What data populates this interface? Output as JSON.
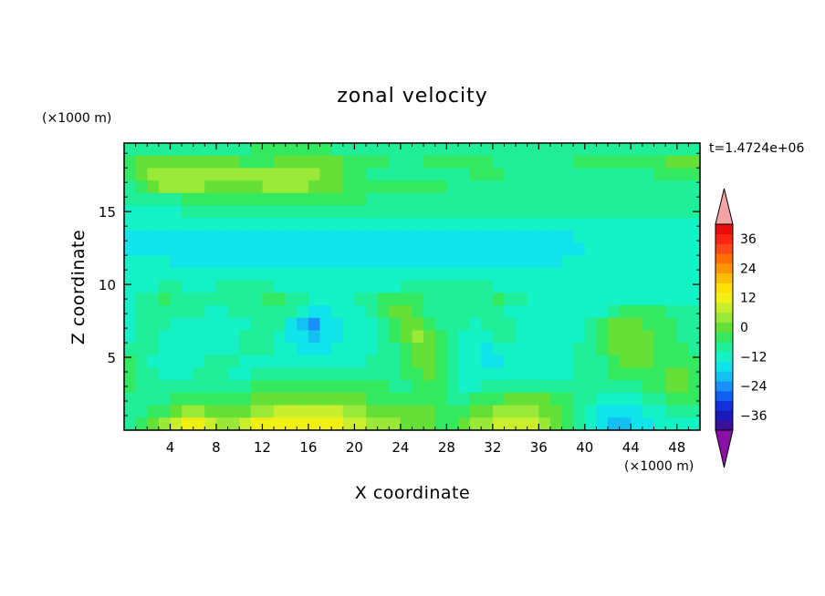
{
  "chart_data": {
    "type": "heatmap",
    "title": "zonal velocity",
    "xlabel": "X coordinate",
    "ylabel": "Z coordinate",
    "x_unit": "(×1000 m)",
    "y_unit": "(×1000 m)",
    "time_label": "t=1.4724e+06",
    "xlim": [
      0,
      50
    ],
    "ylim": [
      0,
      19.7
    ],
    "xticks": [
      "4",
      "8",
      "12",
      "16",
      "20",
      "24",
      "28",
      "32",
      "36",
      "40",
      "44",
      "48"
    ],
    "yticks": [
      "5",
      "10",
      "15"
    ],
    "colorbar": {
      "tick_labels": [
        "36",
        "24",
        "12",
        "0",
        "−12",
        "−24",
        "−36"
      ],
      "tick_values": [
        36,
        24,
        12,
        0,
        -12,
        -24,
        -36
      ],
      "range": [
        -42,
        42
      ],
      "step": 4,
      "colors": [
        "#3a0f9a",
        "#1a1ab8",
        "#1530d8",
        "#1060f0",
        "#1890f8",
        "#14bff2",
        "#10e4ea",
        "#14f2c6",
        "#20ee98",
        "#34e860",
        "#64e036",
        "#9ae838",
        "#c8ee2e",
        "#f0f016",
        "#ffe000",
        "#ffbc00",
        "#ff9600",
        "#ff7000",
        "#ff4818",
        "#ff2414",
        "#e80c0c"
      ],
      "over_color": "#f4a4a4",
      "under_color": "#8a10a8"
    },
    "grid": false,
    "field_rows_note": "",
    "field": [
      [
        8,
        8,
        8,
        8,
        8,
        8,
        8,
        8,
        8,
        8,
        8,
        9,
        9,
        9,
        9,
        9,
        9,
        9,
        8,
        8,
        8,
        8,
        8,
        8,
        8,
        8,
        8,
        8,
        8,
        8,
        8,
        8,
        8,
        8,
        8,
        8,
        8,
        8,
        8,
        8,
        8,
        8,
        8,
        8,
        8,
        8,
        8,
        8,
        8,
        8
      ],
      [
        9,
        10,
        10,
        10,
        10,
        10,
        10,
        10,
        10,
        10,
        9,
        9,
        9,
        10,
        10,
        10,
        10,
        10,
        10,
        9,
        9,
        9,
        9,
        8,
        8,
        8,
        9,
        9,
        9,
        9,
        9,
        9,
        8,
        8,
        8,
        8,
        8,
        8,
        8,
        9,
        9,
        9,
        9,
        9,
        9,
        9,
        9,
        10,
        10,
        10
      ],
      [
        9,
        10,
        11,
        11,
        11,
        11,
        11,
        11,
        11,
        11,
        11,
        11,
        11,
        11,
        11,
        11,
        11,
        10,
        10,
        9,
        9,
        8,
        8,
        8,
        8,
        8,
        8,
        8,
        8,
        8,
        9,
        9,
        9,
        8,
        8,
        8,
        8,
        8,
        8,
        8,
        8,
        8,
        8,
        8,
        8,
        8,
        9,
        9,
        9,
        9
      ],
      [
        8,
        9,
        10,
        11,
        11,
        11,
        11,
        10,
        10,
        10,
        10,
        10,
        11,
        11,
        11,
        11,
        10,
        10,
        10,
        9,
        9,
        9,
        9,
        9,
        9,
        9,
        9,
        9,
        8,
        8,
        8,
        8,
        8,
        8,
        8,
        8,
        8,
        8,
        8,
        8,
        8,
        8,
        8,
        8,
        8,
        8,
        8,
        8,
        8,
        8
      ],
      [
        8,
        8,
        8,
        8,
        8,
        9,
        9,
        9,
        9,
        9,
        9,
        9,
        9,
        9,
        9,
        9,
        9,
        9,
        9,
        9,
        9,
        8,
        8,
        8,
        8,
        8,
        8,
        8,
        8,
        8,
        8,
        8,
        8,
        8,
        8,
        8,
        8,
        8,
        8,
        8,
        8,
        8,
        8,
        8,
        8,
        8,
        8,
        8,
        8,
        8
      ],
      [
        7,
        7,
        7,
        7,
        7,
        8,
        8,
        8,
        8,
        8,
        8,
        8,
        8,
        8,
        8,
        8,
        8,
        8,
        8,
        8,
        8,
        8,
        8,
        8,
        8,
        8,
        8,
        8,
        8,
        8,
        8,
        8,
        8,
        8,
        8,
        8,
        8,
        8,
        8,
        8,
        8,
        8,
        8,
        8,
        8,
        8,
        8,
        8,
        8,
        8
      ],
      [
        7,
        7,
        7,
        7,
        7,
        7,
        7,
        7,
        7,
        7,
        7,
        7,
        7,
        7,
        7,
        7,
        7,
        7,
        7,
        7,
        7,
        7,
        7,
        7,
        7,
        7,
        7,
        7,
        7,
        7,
        7,
        7,
        7,
        7,
        7,
        7,
        7,
        7,
        7,
        7,
        7,
        7,
        7,
        7,
        7,
        7,
        7,
        7,
        7,
        7
      ],
      [
        6,
        6,
        6,
        6,
        6,
        6,
        6,
        6,
        6,
        6,
        6,
        6,
        6,
        6,
        6,
        6,
        6,
        6,
        6,
        6,
        6,
        6,
        6,
        6,
        6,
        6,
        6,
        6,
        6,
        6,
        6,
        6,
        6,
        6,
        6,
        6,
        6,
        6,
        6,
        7,
        7,
        7,
        7,
        7,
        7,
        7,
        7,
        7,
        7,
        7
      ],
      [
        6,
        6,
        6,
        6,
        6,
        6,
        6,
        6,
        6,
        6,
        6,
        6,
        6,
        6,
        6,
        6,
        6,
        6,
        6,
        6,
        6,
        6,
        6,
        6,
        6,
        6,
        6,
        6,
        6,
        6,
        6,
        6,
        6,
        6,
        6,
        6,
        6,
        6,
        6,
        6,
        7,
        7,
        7,
        7,
        7,
        7,
        7,
        7,
        7,
        7
      ],
      [
        7,
        7,
        7,
        7,
        6,
        6,
        6,
        6,
        6,
        6,
        6,
        6,
        6,
        6,
        6,
        6,
        6,
        6,
        6,
        6,
        6,
        6,
        6,
        6,
        6,
        6,
        6,
        6,
        6,
        6,
        6,
        6,
        6,
        6,
        6,
        6,
        6,
        6,
        7,
        7,
        7,
        7,
        7,
        7,
        7,
        7,
        7,
        7,
        7,
        7
      ],
      [
        7,
        7,
        7,
        7,
        7,
        7,
        7,
        7,
        7,
        7,
        7,
        7,
        7,
        7,
        7,
        7,
        7,
        7,
        7,
        7,
        7,
        7,
        7,
        7,
        7,
        7,
        7,
        7,
        7,
        7,
        7,
        7,
        7,
        7,
        7,
        7,
        7,
        7,
        7,
        7,
        7,
        7,
        7,
        7,
        7,
        7,
        7,
        7,
        7,
        7
      ],
      [
        7,
        7,
        7,
        8,
        8,
        7,
        7,
        7,
        8,
        8,
        8,
        8,
        8,
        7,
        7,
        7,
        7,
        7,
        7,
        7,
        7,
        7,
        7,
        7,
        8,
        8,
        8,
        8,
        8,
        8,
        8,
        8,
        7,
        7,
        7,
        7,
        7,
        7,
        7,
        7,
        7,
        7,
        7,
        7,
        7,
        7,
        7,
        7,
        7,
        7
      ],
      [
        7,
        8,
        8,
        9,
        8,
        8,
        8,
        8,
        8,
        8,
        8,
        8,
        9,
        9,
        8,
        8,
        7,
        7,
        7,
        7,
        8,
        8,
        9,
        9,
        9,
        9,
        8,
        8,
        8,
        8,
        8,
        8,
        9,
        8,
        8,
        7,
        7,
        7,
        7,
        7,
        7,
        7,
        7,
        7,
        7,
        7,
        7,
        7,
        7,
        7
      ],
      [
        7,
        8,
        8,
        8,
        8,
        8,
        8,
        7,
        7,
        8,
        8,
        8,
        8,
        8,
        8,
        7,
        6,
        6,
        7,
        7,
        7,
        8,
        9,
        10,
        10,
        9,
        8,
        8,
        8,
        8,
        8,
        8,
        8,
        7,
        7,
        7,
        7,
        7,
        7,
        7,
        7,
        7,
        8,
        9,
        9,
        9,
        9,
        8,
        8,
        8
      ],
      [
        7,
        8,
        8,
        8,
        7,
        7,
        7,
        7,
        7,
        7,
        7,
        8,
        8,
        8,
        6,
        5,
        4,
        6,
        6,
        7,
        7,
        7,
        8,
        9,
        10,
        10,
        9,
        8,
        8,
        8,
        7,
        8,
        8,
        8,
        7,
        7,
        7,
        7,
        7,
        7,
        8,
        9,
        10,
        10,
        10,
        9,
        9,
        9,
        8,
        8
      ],
      [
        7,
        8,
        8,
        7,
        7,
        7,
        7,
        7,
        7,
        7,
        8,
        8,
        8,
        7,
        6,
        6,
        5,
        6,
        6,
        7,
        7,
        7,
        8,
        9,
        10,
        11,
        10,
        9,
        8,
        7,
        7,
        7,
        8,
        8,
        7,
        7,
        7,
        7,
        7,
        7,
        8,
        9,
        10,
        10,
        10,
        10,
        9,
        9,
        8,
        8
      ],
      [
        8,
        8,
        8,
        7,
        7,
        7,
        7,
        7,
        7,
        7,
        8,
        8,
        8,
        7,
        7,
        6,
        6,
        6,
        7,
        7,
        7,
        7,
        8,
        8,
        9,
        10,
        10,
        9,
        8,
        7,
        7,
        6,
        7,
        7,
        7,
        7,
        7,
        7,
        7,
        8,
        8,
        9,
        10,
        10,
        10,
        10,
        9,
        9,
        9,
        8
      ],
      [
        9,
        8,
        7,
        7,
        7,
        7,
        7,
        8,
        8,
        8,
        7,
        7,
        7,
        7,
        7,
        7,
        7,
        7,
        7,
        7,
        7,
        8,
        8,
        8,
        9,
        10,
        10,
        9,
        8,
        7,
        7,
        6,
        6,
        7,
        7,
        7,
        7,
        7,
        7,
        8,
        8,
        8,
        9,
        10,
        10,
        10,
        9,
        9,
        9,
        9
      ],
      [
        9,
        8,
        8,
        7,
        7,
        7,
        8,
        8,
        8,
        7,
        7,
        8,
        8,
        8,
        8,
        8,
        8,
        8,
        8,
        8,
        8,
        8,
        8,
        8,
        9,
        9,
        10,
        9,
        8,
        7,
        7,
        7,
        7,
        7,
        7,
        7,
        7,
        7,
        7,
        8,
        8,
        8,
        9,
        9,
        9,
        9,
        9,
        10,
        10,
        9
      ],
      [
        9,
        8,
        8,
        8,
        8,
        8,
        8,
        8,
        8,
        8,
        8,
        9,
        9,
        9,
        9,
        9,
        9,
        9,
        9,
        9,
        9,
        9,
        9,
        8,
        8,
        9,
        9,
        9,
        8,
        7,
        7,
        8,
        8,
        8,
        8,
        8,
        8,
        8,
        8,
        8,
        8,
        8,
        8,
        8,
        8,
        9,
        9,
        10,
        10,
        9
      ],
      [
        8,
        8,
        8,
        8,
        9,
        9,
        9,
        9,
        9,
        9,
        9,
        10,
        10,
        10,
        10,
        10,
        10,
        10,
        10,
        10,
        10,
        9,
        9,
        9,
        9,
        9,
        9,
        9,
        8,
        8,
        9,
        9,
        9,
        10,
        10,
        10,
        10,
        9,
        9,
        8,
        8,
        7,
        7,
        7,
        7,
        8,
        8,
        9,
        9,
        9
      ],
      [
        8,
        8,
        9,
        9,
        10,
        11,
        11,
        10,
        10,
        10,
        10,
        11,
        11,
        12,
        12,
        12,
        12,
        12,
        12,
        11,
        11,
        10,
        10,
        10,
        10,
        10,
        10,
        9,
        9,
        9,
        10,
        10,
        11,
        11,
        11,
        11,
        10,
        10,
        9,
        8,
        7,
        6,
        6,
        6,
        6,
        7,
        7,
        8,
        8,
        8
      ],
      [
        8,
        9,
        10,
        11,
        12,
        13,
        13,
        12,
        11,
        11,
        12,
        13,
        13,
        13,
        13,
        13,
        13,
        13,
        13,
        12,
        12,
        11,
        11,
        11,
        10,
        10,
        10,
        9,
        9,
        10,
        11,
        11,
        12,
        12,
        12,
        12,
        11,
        10,
        9,
        8,
        7,
        6,
        5,
        5,
        6,
        6,
        7,
        7,
        7,
        7
      ]
    ]
  }
}
